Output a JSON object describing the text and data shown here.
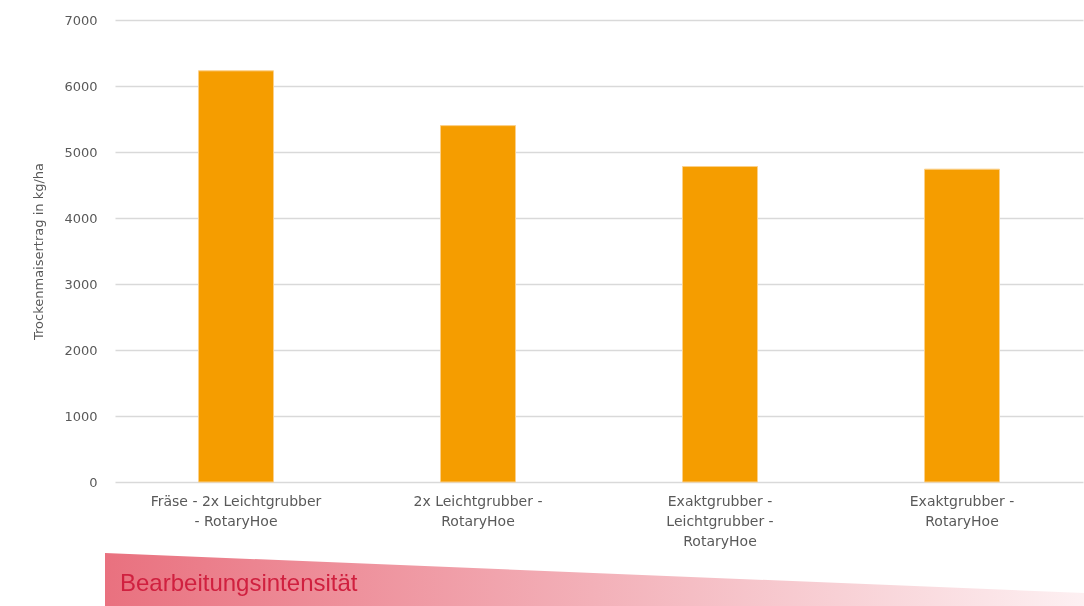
{
  "chart_data": {
    "type": "bar",
    "ylabel": "Trockenmaisertrag in kg/ha",
    "categories": [
      "Fräse - 2x Leichtgrubber - RotaryHoe",
      "2x Leichtgrubber - RotaryHoe",
      "Exaktgrubber - Leichtgrubber - RotaryHoe",
      "Exaktgrubber - RotaryHoe"
    ],
    "values": [
      6230,
      5400,
      4780,
      4740
    ],
    "color": "#f59d00",
    "ylim": [
      0,
      7000
    ],
    "yticks": [
      0,
      1000,
      2000,
      3000,
      4000,
      5000,
      6000,
      7000
    ],
    "grid": true,
    "annotations": [
      "Bearbeitungsintensität"
    ]
  }
}
